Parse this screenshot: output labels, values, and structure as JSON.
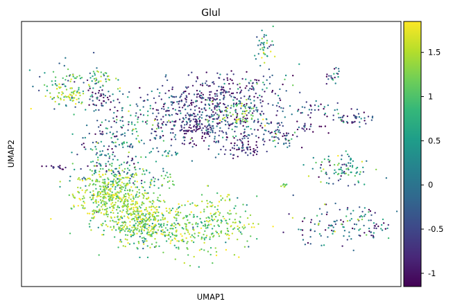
{
  "chart_data": {
    "type": "scatter",
    "title": "Glul",
    "xlabel": "UMAP1",
    "ylabel": "UMAP2",
    "colormap": "viridis",
    "colormap_stops": [
      "#440154",
      "#482878",
      "#3e4989",
      "#31688e",
      "#26828e",
      "#1f9e89",
      "#35b779",
      "#6ece58",
      "#b5de2b",
      "#fde725"
    ],
    "color_range": [
      -1.15,
      1.85
    ],
    "colorbar_ticks": [
      {
        "value": 1.5,
        "label": "1.5"
      },
      {
        "value": 1,
        "label": "1"
      },
      {
        "value": 0.5,
        "label": "0.5"
      },
      {
        "value": 0,
        "label": "0"
      },
      {
        "value": -0.5,
        "label": "-0.5"
      },
      {
        "value": -1,
        "label": "-1"
      }
    ],
    "xlim": [
      0,
      100
    ],
    "ylim": [
      0,
      100
    ],
    "grid": false,
    "axis_ticks": false,
    "clusters": [
      {
        "cx": 23,
        "cy": 34,
        "sx": 4.5,
        "sy": 5.5,
        "n": 420,
        "mean": 1.3,
        "sd": 0.35
      },
      {
        "cx": 31,
        "cy": 28,
        "sx": 3.5,
        "sy": 4,
        "n": 160,
        "mean": 1.4,
        "sd": 0.3
      },
      {
        "cx": 33,
        "cy": 22,
        "sx": 4,
        "sy": 3.5,
        "n": 170,
        "mean": 0.9,
        "sd": 0.5
      },
      {
        "cx": 43,
        "cy": 22,
        "sx": 7,
        "sy": 5.5,
        "n": 220,
        "mean": 1.2,
        "sd": 0.45
      },
      {
        "cx": 52,
        "cy": 24,
        "sx": 5,
        "sy": 5,
        "n": 130,
        "mean": 1.1,
        "sd": 0.45
      },
      {
        "cx": 28,
        "cy": 42,
        "sx": 7,
        "sy": 4,
        "n": 100,
        "mean": 0.5,
        "sd": 0.6
      },
      {
        "cx": 23,
        "cy": 56,
        "sx": 4,
        "sy": 10,
        "n": 150,
        "mean": -0.2,
        "sd": 0.7
      },
      {
        "cx": 30,
        "cy": 58,
        "sx": 3,
        "sy": 5,
        "n": 50,
        "mean": 0.8,
        "sd": 0.5
      },
      {
        "cx": 13,
        "cy": 75,
        "sx": 5,
        "sy": 4,
        "n": 90,
        "mean": 0.4,
        "sd": 0.8
      },
      {
        "cx": 12,
        "cy": 72,
        "sx": 2.5,
        "sy": 1.5,
        "n": 45,
        "mean": 1.5,
        "sd": 0.3
      },
      {
        "cx": 20,
        "cy": 79,
        "sx": 2.5,
        "sy": 2,
        "n": 30,
        "mean": 1.0,
        "sd": 0.4
      },
      {
        "cx": 21,
        "cy": 71,
        "sx": 1.5,
        "sy": 2,
        "n": 30,
        "mean": -0.9,
        "sd": 0.3
      },
      {
        "cx": 48,
        "cy": 65,
        "sx": 9,
        "sy": 6,
        "n": 420,
        "mean": -0.5,
        "sd": 0.6
      },
      {
        "cx": 52,
        "cy": 73,
        "sx": 5,
        "sy": 3,
        "n": 90,
        "mean": -0.9,
        "sd": 0.3
      },
      {
        "cx": 45,
        "cy": 60,
        "sx": 3,
        "sy": 2.5,
        "n": 90,
        "mean": -0.9,
        "sd": 0.25
      },
      {
        "cx": 57,
        "cy": 65,
        "sx": 3,
        "sy": 3,
        "n": 60,
        "mean": 1.2,
        "sd": 0.5
      },
      {
        "cx": 58,
        "cy": 52,
        "sx": 3,
        "sy": 2,
        "n": 60,
        "mean": -0.8,
        "sd": 0.4
      },
      {
        "cx": 64,
        "cy": 58,
        "sx": 3,
        "sy": 2,
        "n": 40,
        "mean": -0.6,
        "sd": 0.6
      },
      {
        "cx": 63,
        "cy": 73,
        "sx": 5,
        "sy": 5,
        "n": 80,
        "mean": -0.3,
        "sd": 0.7
      },
      {
        "cx": 64,
        "cy": 91,
        "sx": 1.2,
        "sy": 3,
        "n": 40,
        "mean": 0.6,
        "sd": 0.8
      },
      {
        "cx": 82,
        "cy": 80,
        "sx": 1.2,
        "sy": 1.5,
        "n": 20,
        "mean": -0.3,
        "sd": 0.8
      },
      {
        "cx": 78,
        "cy": 67,
        "sx": 3,
        "sy": 1.2,
        "n": 25,
        "mean": -0.6,
        "sd": 0.6
      },
      {
        "cx": 87,
        "cy": 64,
        "sx": 3,
        "sy": 1.5,
        "n": 45,
        "mean": -0.4,
        "sd": 0.7
      },
      {
        "cx": 75,
        "cy": 60,
        "sx": 2.5,
        "sy": 1.2,
        "n": 20,
        "mean": -0.7,
        "sd": 0.5
      },
      {
        "cx": 70,
        "cy": 55,
        "sx": 2,
        "sy": 2,
        "n": 30,
        "mean": -0.2,
        "sd": 0.8
      },
      {
        "cx": 84,
        "cy": 45,
        "sx": 4,
        "sy": 3,
        "n": 90,
        "mean": 0.2,
        "sd": 0.8
      },
      {
        "cx": 82,
        "cy": 23,
        "sx": 7,
        "sy": 4,
        "n": 110,
        "mean": -0.1,
        "sd": 0.8
      },
      {
        "cx": 93,
        "cy": 22,
        "sx": 2,
        "sy": 2,
        "n": 25,
        "mean": -0.6,
        "sd": 0.6
      },
      {
        "cx": 9,
        "cy": 45,
        "sx": 1.5,
        "sy": 0.5,
        "n": 15,
        "mean": -0.9,
        "sd": 0.3
      },
      {
        "cx": 39,
        "cy": 50,
        "sx": 1,
        "sy": 0.8,
        "n": 12,
        "mean": 0.3,
        "sd": 0.6
      },
      {
        "cx": 39,
        "cy": 41,
        "sx": 0.8,
        "sy": 1.5,
        "n": 10,
        "mean": 1.3,
        "sd": 0.3
      },
      {
        "cx": 69,
        "cy": 38,
        "sx": 0.7,
        "sy": 0.5,
        "n": 8,
        "mean": 1.2,
        "sd": 0.3
      }
    ]
  }
}
